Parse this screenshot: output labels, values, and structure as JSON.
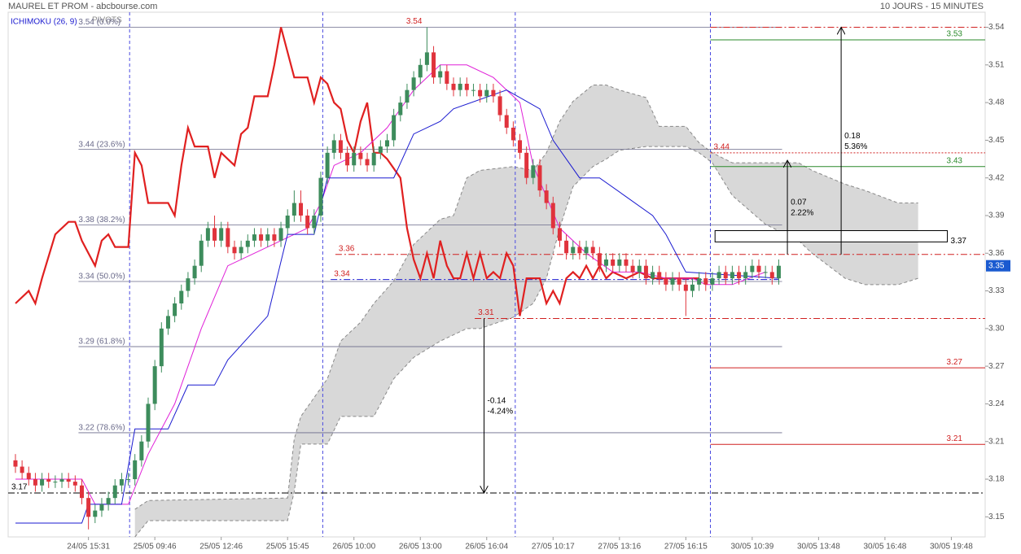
{
  "header": {
    "title": "MAUREL ET PROM - abcbourse.com",
    "period": "10 JOURS - 15 MINUTES",
    "indicator": "ICHIMOKU (26, 9)",
    "overlay": "PIVOTS"
  },
  "chart_data": {
    "type": "ichimoku",
    "xlim": [
      -1.1,
      146.1
    ],
    "ylim": [
      3.134,
      3.552
    ],
    "yticks": [
      3.54,
      3.51,
      3.48,
      3.45,
      3.42,
      3.39,
      3.36,
      3.33,
      {
        "value": 3.3,
        "label": "3.30"
      },
      3.27,
      3.24,
      3.21,
      3.18,
      3.15
    ],
    "xticks": [
      {
        "value": 11,
        "label": "24/05 15:31"
      },
      {
        "value": 21,
        "label": "25/05 09:46"
      },
      {
        "value": 31,
        "label": "25/05 12:46"
      },
      {
        "value": 41,
        "label": "25/05 15:45"
      },
      {
        "value": 51,
        "label": "26/05 10:00"
      },
      {
        "value": 61,
        "label": "26/05 13:00"
      },
      {
        "value": 71,
        "label": "26/05 16:04"
      },
      {
        "value": 81,
        "label": "27/05 10:17"
      },
      {
        "value": 91,
        "label": "27/05 13:16"
      },
      {
        "value": 101,
        "label": "27/05 16:15"
      },
      {
        "value": 111,
        "label": "30/05 10:39"
      },
      {
        "value": 121,
        "label": "30/05 13:48"
      },
      {
        "value": 131,
        "label": "30/05 16:48"
      },
      {
        "value": 141,
        "label": "30/05 19:48"
      }
    ],
    "day_separators": [
      17.2,
      46.3,
      75.3,
      104.7
    ],
    "candles": {
      "up_color": "#3d8c5c",
      "down_color": "#e0333c",
      "open": [
        3.195,
        3.19,
        3.185,
        3.18,
        3.175,
        3.18,
        3.178,
        3.178,
        3.18,
        3.178,
        3.175,
        3.165,
        3.15,
        3.155,
        3.16,
        3.165,
        3.175,
        3.18,
        3.18,
        3.195,
        3.21,
        3.24,
        3.27,
        3.3,
        3.31,
        3.32,
        3.33,
        3.34,
        3.35,
        3.37,
        3.38,
        3.37,
        3.38,
        3.365,
        3.36,
        3.365,
        3.37,
        3.375,
        3.37,
        3.375,
        3.37,
        3.38,
        3.39,
        3.4,
        3.39,
        3.38,
        3.39,
        3.42,
        3.44,
        3.45,
        3.44,
        3.43,
        3.44,
        3.435,
        3.43,
        3.44,
        3.445,
        3.45,
        3.47,
        3.48,
        3.49,
        3.5,
        3.51,
        3.52,
        3.5,
        3.505,
        3.495,
        3.49,
        3.495,
        3.49,
        3.49,
        3.485,
        3.49,
        3.485,
        3.47,
        3.46,
        3.45,
        3.44,
        3.42,
        3.43,
        3.41,
        3.4,
        3.38,
        3.37,
        3.36,
        3.365,
        3.36,
        3.365,
        3.36,
        3.35,
        3.355,
        3.35,
        3.355,
        3.35,
        3.345,
        3.35,
        3.34,
        3.345,
        3.34,
        3.335,
        3.34,
        3.335,
        3.33,
        3.335,
        3.34,
        3.335,
        3.34,
        3.345,
        3.34,
        3.345,
        3.34,
        3.345,
        3.35,
        3.345,
        3.345,
        3.34
      ],
      "high": [
        3.2,
        3.195,
        3.19,
        3.185,
        3.185,
        3.185,
        3.183,
        3.185,
        3.185,
        3.183,
        3.18,
        3.17,
        3.16,
        3.165,
        3.17,
        3.18,
        3.185,
        3.185,
        3.2,
        3.215,
        3.245,
        3.275,
        3.305,
        3.315,
        3.325,
        3.335,
        3.345,
        3.355,
        3.375,
        3.385,
        3.39,
        3.385,
        3.385,
        3.37,
        3.37,
        3.375,
        3.38,
        3.38,
        3.38,
        3.38,
        3.385,
        3.395,
        3.41,
        3.41,
        3.395,
        3.395,
        3.425,
        3.445,
        3.455,
        3.455,
        3.445,
        3.445,
        3.445,
        3.44,
        3.445,
        3.45,
        3.455,
        3.475,
        3.485,
        3.495,
        3.505,
        3.515,
        3.54,
        3.525,
        3.51,
        3.51,
        3.5,
        3.5,
        3.5,
        3.495,
        3.495,
        3.495,
        3.495,
        3.49,
        3.475,
        3.465,
        3.455,
        3.445,
        3.435,
        3.435,
        3.415,
        3.405,
        3.385,
        3.375,
        3.37,
        3.37,
        3.37,
        3.37,
        3.365,
        3.36,
        3.36,
        3.36,
        3.36,
        3.355,
        3.355,
        3.355,
        3.35,
        3.35,
        3.345,
        3.345,
        3.345,
        3.34,
        3.34,
        3.345,
        3.345,
        3.345,
        3.35,
        3.35,
        3.35,
        3.35,
        3.35,
        3.355,
        3.355,
        3.35,
        3.35,
        3.355
      ],
      "low": [
        3.185,
        3.18,
        3.175,
        3.17,
        3.17,
        3.173,
        3.173,
        3.173,
        3.173,
        3.17,
        3.16,
        3.14,
        3.145,
        3.15,
        3.155,
        3.16,
        3.17,
        3.175,
        3.175,
        3.19,
        3.205,
        3.235,
        3.265,
        3.295,
        3.305,
        3.315,
        3.325,
        3.335,
        3.345,
        3.365,
        3.365,
        3.365,
        3.36,
        3.355,
        3.355,
        3.36,
        3.365,
        3.365,
        3.365,
        3.365,
        3.365,
        3.375,
        3.385,
        3.385,
        3.375,
        3.375,
        3.385,
        3.415,
        3.435,
        3.435,
        3.425,
        3.425,
        3.43,
        3.425,
        3.425,
        3.435,
        3.44,
        3.445,
        3.465,
        3.475,
        3.485,
        3.495,
        3.505,
        3.495,
        3.495,
        3.49,
        3.485,
        3.485,
        3.485,
        3.485,
        3.48,
        3.48,
        3.48,
        3.465,
        3.455,
        3.445,
        3.435,
        3.415,
        3.415,
        3.405,
        3.395,
        3.375,
        3.365,
        3.355,
        3.355,
        3.355,
        3.355,
        3.355,
        3.345,
        3.345,
        3.345,
        3.345,
        3.345,
        3.34,
        3.34,
        3.335,
        3.335,
        3.335,
        3.33,
        3.33,
        3.33,
        3.31,
        3.325,
        3.33,
        3.33,
        3.33,
        3.335,
        3.335,
        3.335,
        3.335,
        3.335,
        3.34,
        3.34,
        3.34,
        3.335,
        3.335
      ],
      "close": [
        3.19,
        3.185,
        3.18,
        3.175,
        3.18,
        3.178,
        3.178,
        3.18,
        3.178,
        3.175,
        3.165,
        3.15,
        3.155,
        3.16,
        3.165,
        3.175,
        3.18,
        3.18,
        3.195,
        3.21,
        3.24,
        3.27,
        3.3,
        3.31,
        3.32,
        3.33,
        3.34,
        3.35,
        3.37,
        3.38,
        3.37,
        3.38,
        3.365,
        3.36,
        3.365,
        3.37,
        3.375,
        3.37,
        3.375,
        3.37,
        3.38,
        3.39,
        3.4,
        3.39,
        3.38,
        3.39,
        3.42,
        3.44,
        3.45,
        3.44,
        3.43,
        3.44,
        3.435,
        3.43,
        3.44,
        3.445,
        3.45,
        3.47,
        3.48,
        3.49,
        3.5,
        3.51,
        3.52,
        3.5,
        3.505,
        3.495,
        3.49,
        3.495,
        3.49,
        3.49,
        3.485,
        3.49,
        3.485,
        3.47,
        3.46,
        3.45,
        3.44,
        3.42,
        3.43,
        3.41,
        3.4,
        3.38,
        3.37,
        3.36,
        3.365,
        3.36,
        3.365,
        3.36,
        3.35,
        3.355,
        3.35,
        3.355,
        3.35,
        3.345,
        3.35,
        3.34,
        3.345,
        3.34,
        3.335,
        3.34,
        3.335,
        3.33,
        3.335,
        3.34,
        3.335,
        3.34,
        3.345,
        3.34,
        3.345,
        3.34,
        3.345,
        3.35,
        3.345,
        3.345,
        3.34,
        3.35
      ]
    },
    "cloud": {
      "color": "#d6d6d6",
      "x": [
        18,
        20,
        41,
        42,
        43,
        47,
        49,
        52,
        54,
        57,
        60,
        64,
        66,
        68,
        70,
        75,
        78,
        80,
        82,
        84,
        87,
        89,
        91,
        95,
        97,
        101,
        103,
        105,
        108,
        113,
        118,
        120,
        125,
        128,
        133,
        136
      ],
      "upper": [
        3.156,
        3.163,
        3.165,
        3.212,
        3.23,
        3.26,
        3.29,
        3.305,
        3.32,
        3.338,
        3.367,
        3.387,
        3.39,
        3.42,
        3.426,
        3.429,
        3.426,
        3.44,
        3.465,
        3.481,
        3.494,
        3.494,
        3.49,
        3.484,
        3.461,
        3.461,
        3.448,
        3.44,
        3.432,
        3.432,
        3.432,
        3.426,
        3.415,
        3.41,
        3.4,
        3.4
      ],
      "lower": [
        3.134,
        3.147,
        3.147,
        3.17,
        3.208,
        3.208,
        3.23,
        3.23,
        3.23,
        3.26,
        3.277,
        3.29,
        3.295,
        3.3,
        3.3,
        3.309,
        3.32,
        3.34,
        3.38,
        3.413,
        3.429,
        3.435,
        3.442,
        3.445,
        3.445,
        3.445,
        3.44,
        3.432,
        3.406,
        3.383,
        3.37,
        3.36,
        3.34,
        3.335,
        3.335,
        3.34
      ]
    },
    "series": [
      {
        "color": "#e02020",
        "width": 2.2,
        "x": [
          0,
          2,
          3,
          4,
          6,
          8,
          9,
          10,
          11,
          12,
          13,
          14,
          15,
          17,
          18,
          19,
          20,
          22,
          23,
          24,
          25,
          26,
          27,
          29,
          30,
          31,
          33,
          34,
          35,
          36,
          38,
          39,
          40,
          42,
          44,
          45,
          46,
          47,
          48,
          49,
          50,
          51,
          52,
          53,
          54,
          55,
          56,
          58,
          59,
          60,
          61,
          62,
          63,
          64,
          65,
          66,
          67,
          68,
          69,
          70,
          71,
          72,
          73,
          74,
          75,
          76,
          77,
          79,
          80,
          81,
          82,
          83,
          84,
          85,
          86,
          87,
          88,
          89,
          90,
          92,
          94,
          96,
          100,
          103
        ],
        "values": [
          3.32,
          3.33,
          3.32,
          3.34,
          3.375,
          3.385,
          3.385,
          3.37,
          3.36,
          3.35,
          3.37,
          3.375,
          3.365,
          3.365,
          3.44,
          3.43,
          3.4,
          3.4,
          3.4,
          3.39,
          3.43,
          3.46,
          3.445,
          3.445,
          3.42,
          3.44,
          3.43,
          3.455,
          3.46,
          3.485,
          3.485,
          3.51,
          3.54,
          3.5,
          3.5,
          3.48,
          3.5,
          3.495,
          3.48,
          3.475,
          3.45,
          3.44,
          3.465,
          3.48,
          3.44,
          3.44,
          3.435,
          3.42,
          3.38,
          3.355,
          3.34,
          3.36,
          3.34,
          3.37,
          3.35,
          3.34,
          3.34,
          3.36,
          3.34,
          3.36,
          3.34,
          3.345,
          3.34,
          3.36,
          3.35,
          3.31,
          3.34,
          3.34,
          3.32,
          3.33,
          3.32,
          3.34,
          3.345,
          3.34,
          3.35,
          3.34,
          3.35,
          3.34,
          3.345,
          3.34,
          3.345,
          3.34,
          3.34,
          3.34
        ]
      },
      {
        "color": "#e020d8",
        "width": 1,
        "x": [
          0,
          10,
          12,
          17,
          20,
          24,
          28,
          32,
          36,
          40,
          44,
          46,
          48,
          52,
          56,
          60,
          64,
          68,
          72,
          76,
          78,
          82,
          86,
          90,
          94,
          98,
          102,
          104,
          108,
          113
        ],
        "values": [
          3.18,
          3.18,
          3.16,
          3.16,
          3.2,
          3.24,
          3.3,
          3.35,
          3.36,
          3.37,
          3.38,
          3.4,
          3.43,
          3.44,
          3.46,
          3.49,
          3.51,
          3.51,
          3.5,
          3.48,
          3.43,
          3.38,
          3.36,
          3.345,
          3.345,
          3.34,
          3.34,
          3.335,
          3.335,
          3.345
        ]
      },
      {
        "color": "#1a1ad0",
        "width": 1,
        "x": [
          0,
          10,
          11,
          16,
          18,
          23,
          26,
          30,
          32,
          38,
          41,
          45,
          47,
          57,
          60,
          64,
          66,
          74,
          79,
          81,
          85,
          88,
          92,
          96,
          98,
          101,
          115
        ],
        "values": [
          3.145,
          3.145,
          3.16,
          3.16,
          3.22,
          3.22,
          3.255,
          3.255,
          3.275,
          3.31,
          3.375,
          3.375,
          3.42,
          3.42,
          3.455,
          3.465,
          3.475,
          3.49,
          3.475,
          3.45,
          3.42,
          3.42,
          3.405,
          3.39,
          3.375,
          3.345,
          3.34
        ]
      }
    ],
    "fibo": {
      "from": 9.5,
      "to": 115.5,
      "color": "#6a6a8a",
      "levels": [
        {
          "value": 3.54,
          "label": "3.54 (0.0%)"
        },
        {
          "value": 3.4427,
          "label": "3.44 (23.6%)"
        },
        {
          "value": 3.3826,
          "label": "3.38 (38.2%)"
        },
        {
          "value": 3.3375,
          "label": "3.34 (50.0%)"
        },
        {
          "value": 3.2856,
          "label": "3.29 (61.8%)"
        },
        {
          "value": 3.217,
          "label": "3.22 (78.6%)"
        }
      ]
    },
    "levels": [
      {
        "value": 3.54,
        "color": "#d02020",
        "dash": "dashdot",
        "from": 104.7
      },
      {
        "value": 3.53,
        "label": "3.53",
        "color": "#2a8a2a",
        "dash": "solid",
        "from": 104.7,
        "label_at": "end"
      },
      {
        "value": 3.44,
        "label": "3.44",
        "color": "#d02020",
        "dash": "dotted",
        "from": 104.7,
        "label_at": "start"
      },
      {
        "value": 3.429,
        "label": "3.43",
        "color": "#2a8a2a",
        "dash": "solid",
        "from": 104.7,
        "label_at": "end"
      },
      {
        "value": 3.359,
        "label": "3.36",
        "color": "#d02020",
        "dash": "dashdot",
        "from": 48.2,
        "label_at": "start"
      },
      {
        "value": 3.339,
        "label": "3.34",
        "color": "#1a1ad0",
        "label_color": "#d02020",
        "dash": "dashdot",
        "from": 47.5,
        "to": 115,
        "label_at": "start"
      },
      {
        "value": 3.308,
        "label": "3.31",
        "color": "#d02020",
        "dash": "dashdot",
        "from": 69.2,
        "label_at": "start"
      },
      {
        "value": 3.2687,
        "label": "3.27",
        "color": "#d02020",
        "dash": "solid",
        "from": 104.7,
        "label_at": "end"
      },
      {
        "value": 3.2077,
        "label": "3.21",
        "color": "#d02020",
        "dash": "solid",
        "from": 104.7,
        "label_at": "end"
      },
      {
        "value": 3.169,
        "label": "3.17",
        "color": "#000000",
        "dash": "dashdot",
        "from": -1.1,
        "label_at": "start"
      }
    ],
    "measures": [
      {
        "x": 70.6,
        "from": 3.308,
        "to": 3.169,
        "labels": [
          "-0.14",
          "-4.24%"
        ]
      },
      {
        "x": 116.3,
        "from": 3.359,
        "to": 3.434,
        "labels": [
          "0.07",
          "2.22%"
        ]
      },
      {
        "x": 124.4,
        "from": 3.359,
        "to": 3.54,
        "labels": [
          "0.18",
          "5.36%"
        ]
      }
    ],
    "box": {
      "x": [
        105.4,
        140.4
      ],
      "values": [
        3.369,
        3.378
      ],
      "label": "3.37"
    },
    "price_color": "#1a5ad0"
  }
}
